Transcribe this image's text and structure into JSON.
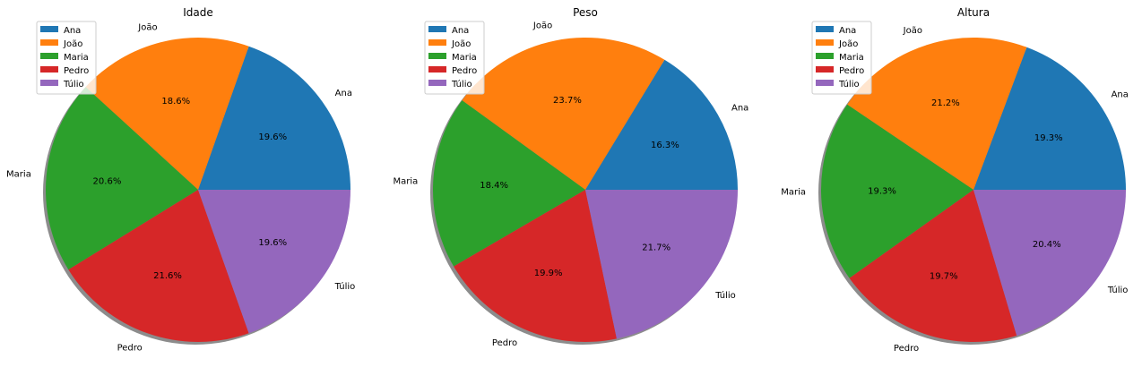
{
  "colors": {
    "Ana": "#1f77b4",
    "João": "#ff7f0e",
    "Maria": "#2ca02c",
    "Pedro": "#d62728",
    "Túlio": "#9467bd"
  },
  "chart_data": [
    {
      "type": "pie",
      "title": "Idade",
      "labels": [
        "Ana",
        "João",
        "Maria",
        "Pedro",
        "Túlio"
      ],
      "percentages": [
        19.6,
        18.6,
        20.6,
        21.6,
        19.6
      ],
      "percentage_labels": [
        "19.6%",
        "18.6%",
        "20.6%",
        "21.6%",
        "19.6%"
      ],
      "legend_entries": [
        "Ana",
        "João",
        "Maria",
        "Pedro",
        "Túlio"
      ],
      "legend_position": "upper-left",
      "shadow": true
    },
    {
      "type": "pie",
      "title": "Peso",
      "labels": [
        "Ana",
        "João",
        "Maria",
        "Pedro",
        "Túlio"
      ],
      "percentages": [
        16.3,
        23.7,
        18.4,
        19.9,
        21.7
      ],
      "percentage_labels": [
        "16.3%",
        "23.7%",
        "18.4%",
        "19.9%",
        "21.7%"
      ],
      "legend_entries": [
        "Ana",
        "João",
        "Maria",
        "Pedro",
        "Túlio"
      ],
      "legend_position": "upper-left",
      "shadow": true
    },
    {
      "type": "pie",
      "title": "Altura",
      "labels": [
        "Ana",
        "João",
        "Maria",
        "Pedro",
        "Túlio"
      ],
      "percentages": [
        19.3,
        21.2,
        19.3,
        19.7,
        20.4
      ],
      "percentage_labels": [
        "19.3%",
        "21.2%",
        "19.3%",
        "19.7%",
        "20.4%"
      ],
      "legend_entries": [
        "Ana",
        "João",
        "Maria",
        "Pedro",
        "Túlio"
      ],
      "legend_position": "upper-left",
      "shadow": true
    }
  ]
}
